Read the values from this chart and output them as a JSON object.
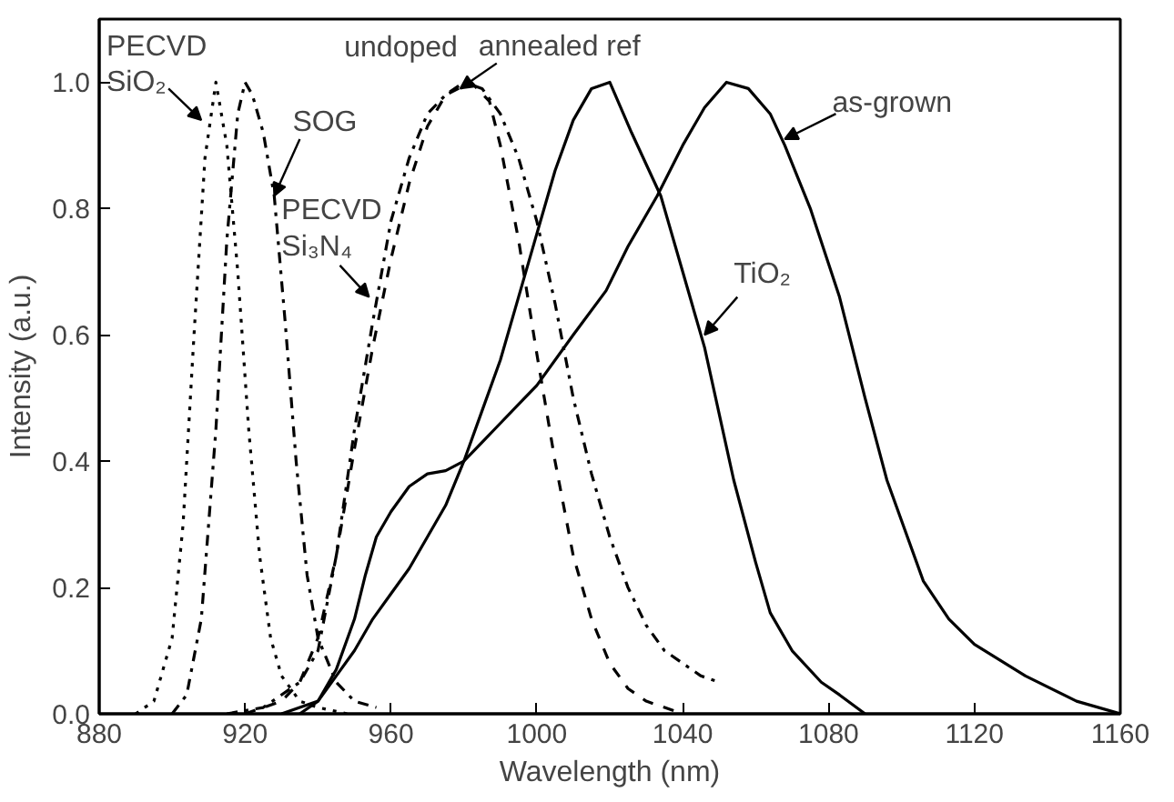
{
  "chart_data": {
    "type": "line",
    "xlabel": "Wavelength (nm)",
    "ylabel": "Intensity (a.u.)",
    "xlim": [
      880,
      1160
    ],
    "xticks": [
      880,
      920,
      960,
      1000,
      1040,
      1080,
      1120,
      1160
    ],
    "ylim": [
      0,
      1.1
    ],
    "yticks": [
      {
        "value": 0,
        "label": "0.0"
      },
      0.2,
      0.4,
      0.6,
      0.8,
      {
        "value": 1,
        "label": "1.0"
      }
    ],
    "grid": false,
    "marker": "none",
    "series": [
      {
        "color": "#000000",
        "line_style": "dotted",
        "x": [
          890,
          895,
          900,
          903,
          906,
          909,
          912,
          915,
          918,
          921,
          924,
          927,
          930,
          935,
          940,
          948
        ],
        "values": [
          0.0,
          0.02,
          0.12,
          0.3,
          0.6,
          0.88,
          1.0,
          0.9,
          0.7,
          0.45,
          0.25,
          0.12,
          0.06,
          0.02,
          0.01,
          0.0
        ]
      },
      {
        "color": "#000000",
        "line_style": "dashdot",
        "x": [
          900,
          904,
          908,
          912,
          915,
          918,
          920,
          922,
          925,
          928,
          931,
          934,
          937,
          940,
          945,
          950,
          956
        ],
        "values": [
          0.0,
          0.03,
          0.15,
          0.45,
          0.75,
          0.95,
          1.0,
          0.98,
          0.92,
          0.82,
          0.62,
          0.4,
          0.22,
          0.12,
          0.05,
          0.02,
          0.01
        ]
      },
      {
        "color": "#000000",
        "line_style": "dashdot",
        "x": [
          915,
          925,
          935,
          940,
          945,
          950,
          955,
          960,
          965,
          970,
          975,
          980,
          985,
          990,
          995,
          1000,
          1005,
          1010,
          1015,
          1020,
          1025,
          1030,
          1035,
          1040,
          1045,
          1050
        ],
        "values": [
          0.0,
          0.01,
          0.05,
          0.1,
          0.25,
          0.45,
          0.62,
          0.78,
          0.88,
          0.95,
          0.98,
          1.0,
          0.99,
          0.95,
          0.88,
          0.78,
          0.65,
          0.5,
          0.38,
          0.28,
          0.2,
          0.14,
          0.1,
          0.08,
          0.06,
          0.05
        ]
      },
      {
        "color": "#000000",
        "line_style": "dashed",
        "x": [
          920,
          930,
          935,
          940,
          945,
          950,
          955,
          960,
          965,
          970,
          975,
          982,
          987,
          990,
          995,
          1000,
          1005,
          1010,
          1015,
          1020,
          1025,
          1030,
          1040
        ],
        "values": [
          0.0,
          0.02,
          0.05,
          0.12,
          0.25,
          0.42,
          0.58,
          0.72,
          0.84,
          0.93,
          0.98,
          1.0,
          0.97,
          0.9,
          0.75,
          0.57,
          0.4,
          0.25,
          0.15,
          0.08,
          0.04,
          0.02,
          0.0
        ]
      },
      {
        "color": "#000000",
        "line_style": "solid",
        "x": [
          930,
          940,
          945,
          950,
          955,
          960,
          965,
          970,
          975,
          980,
          985,
          990,
          995,
          1000,
          1005,
          1010,
          1015,
          1020,
          1026,
          1034,
          1040,
          1046,
          1054,
          1060,
          1064,
          1070,
          1078,
          1083,
          1090
        ],
        "values": [
          0.0,
          0.02,
          0.06,
          0.1,
          0.15,
          0.19,
          0.23,
          0.28,
          0.33,
          0.4,
          0.48,
          0.56,
          0.66,
          0.76,
          0.86,
          0.94,
          0.99,
          1.0,
          0.92,
          0.82,
          0.7,
          0.58,
          0.37,
          0.24,
          0.16,
          0.1,
          0.05,
          0.03,
          0.0
        ]
      },
      {
        "color": "#000000",
        "line_style": "solid",
        "x": [
          935,
          940,
          945,
          950,
          953,
          956,
          960,
          965,
          970,
          975,
          980,
          985,
          990,
          995,
          1000,
          1010,
          1019,
          1025,
          1033,
          1040,
          1046,
          1052,
          1058,
          1064,
          1068,
          1075,
          1083,
          1090,
          1096,
          1106,
          1113,
          1120,
          1134,
          1148,
          1160
        ],
        "values": [
          0.0,
          0.02,
          0.07,
          0.15,
          0.22,
          0.28,
          0.32,
          0.36,
          0.38,
          0.385,
          0.4,
          0.43,
          0.46,
          0.49,
          0.52,
          0.6,
          0.67,
          0.74,
          0.82,
          0.9,
          0.96,
          1.0,
          0.99,
          0.95,
          0.9,
          0.8,
          0.66,
          0.5,
          0.37,
          0.21,
          0.15,
          0.11,
          0.06,
          0.02,
          0.0
        ]
      }
    ],
    "annotations": [
      {
        "text": "PECVD\nSiO₂",
        "x": 908,
        "y": 0.94
      },
      {
        "text": "SOG",
        "x": 928,
        "y": 0.82
      },
      {
        "text": "PECVD\nSi₃N₄",
        "x": 954,
        "y": 0.66
      },
      {
        "text": "annealed ref",
        "x": 979,
        "y": 0.99
      },
      {
        "text": "TiO₂",
        "x": 1046,
        "y": 0.6
      },
      {
        "text": "as-grown",
        "x": 1068,
        "y": 0.91
      },
      "undoped"
    ]
  }
}
